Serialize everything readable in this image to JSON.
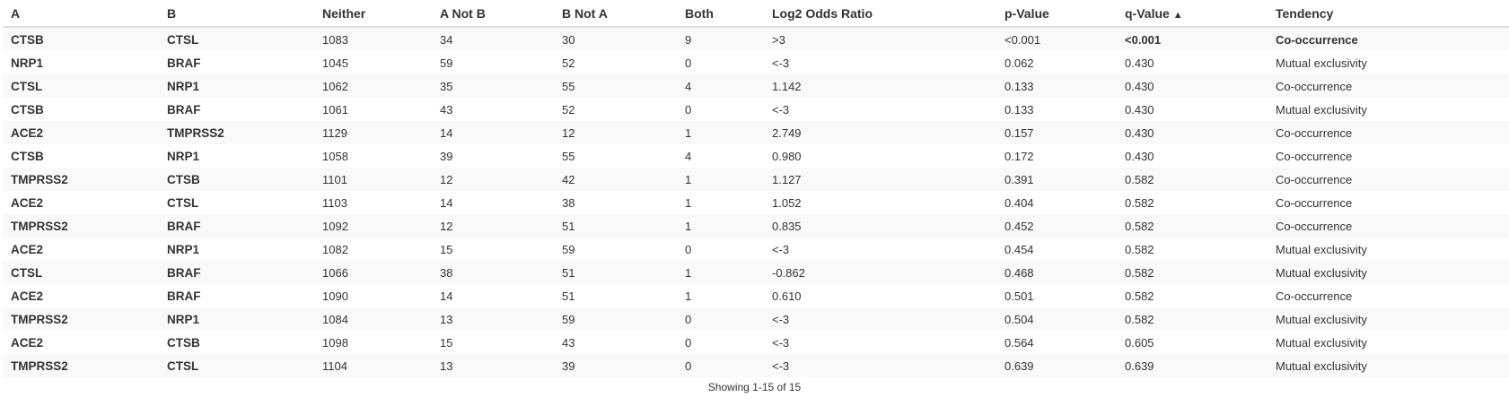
{
  "table": {
    "columns": [
      {
        "key": "a",
        "label": "A",
        "sort": ""
      },
      {
        "key": "b",
        "label": "B",
        "sort": ""
      },
      {
        "key": "neither",
        "label": "Neither",
        "sort": ""
      },
      {
        "key": "a_not_b",
        "label": "A Not B",
        "sort": ""
      },
      {
        "key": "b_not_a",
        "label": "B Not A",
        "sort": ""
      },
      {
        "key": "both",
        "label": "Both",
        "sort": ""
      },
      {
        "key": "log2",
        "label": "Log2 Odds Ratio",
        "sort": ""
      },
      {
        "key": "p",
        "label": "p-Value",
        "sort": ""
      },
      {
        "key": "q",
        "label": "q-Value",
        "sort": "▲"
      },
      {
        "key": "tendency",
        "label": "Tendency",
        "sort": ""
      }
    ],
    "rows": [
      {
        "a": "CTSB",
        "b": "CTSL",
        "neither": "1083",
        "a_not_b": "34",
        "b_not_a": "30",
        "both": "9",
        "log2": ">3",
        "p": "<0.001",
        "q": "<0.001",
        "tendency": "Co-occurrence",
        "significant": true
      },
      {
        "a": "NRP1",
        "b": "BRAF",
        "neither": "1045",
        "a_not_b": "59",
        "b_not_a": "52",
        "both": "0",
        "log2": "<-3",
        "p": "0.062",
        "q": "0.430",
        "tendency": "Mutual exclusivity",
        "significant": false
      },
      {
        "a": "CTSL",
        "b": "NRP1",
        "neither": "1062",
        "a_not_b": "35",
        "b_not_a": "55",
        "both": "4",
        "log2": "1.142",
        "p": "0.133",
        "q": "0.430",
        "tendency": "Co-occurrence",
        "significant": false
      },
      {
        "a": "CTSB",
        "b": "BRAF",
        "neither": "1061",
        "a_not_b": "43",
        "b_not_a": "52",
        "both": "0",
        "log2": "<-3",
        "p": "0.133",
        "q": "0.430",
        "tendency": "Mutual exclusivity",
        "significant": false
      },
      {
        "a": "ACE2",
        "b": "TMPRSS2",
        "neither": "1129",
        "a_not_b": "14",
        "b_not_a": "12",
        "both": "1",
        "log2": "2.749",
        "p": "0.157",
        "q": "0.430",
        "tendency": "Co-occurrence",
        "significant": false
      },
      {
        "a": "CTSB",
        "b": "NRP1",
        "neither": "1058",
        "a_not_b": "39",
        "b_not_a": "55",
        "both": "4",
        "log2": "0.980",
        "p": "0.172",
        "q": "0.430",
        "tendency": "Co-occurrence",
        "significant": false
      },
      {
        "a": "TMPRSS2",
        "b": "CTSB",
        "neither": "1101",
        "a_not_b": "12",
        "b_not_a": "42",
        "both": "1",
        "log2": "1.127",
        "p": "0.391",
        "q": "0.582",
        "tendency": "Co-occurrence",
        "significant": false
      },
      {
        "a": "ACE2",
        "b": "CTSL",
        "neither": "1103",
        "a_not_b": "14",
        "b_not_a": "38",
        "both": "1",
        "log2": "1.052",
        "p": "0.404",
        "q": "0.582",
        "tendency": "Co-occurrence",
        "significant": false
      },
      {
        "a": "TMPRSS2",
        "b": "BRAF",
        "neither": "1092",
        "a_not_b": "12",
        "b_not_a": "51",
        "both": "1",
        "log2": "0.835",
        "p": "0.452",
        "q": "0.582",
        "tendency": "Co-occurrence",
        "significant": false
      },
      {
        "a": "ACE2",
        "b": "NRP1",
        "neither": "1082",
        "a_not_b": "15",
        "b_not_a": "59",
        "both": "0",
        "log2": "<-3",
        "p": "0.454",
        "q": "0.582",
        "tendency": "Mutual exclusivity",
        "significant": false
      },
      {
        "a": "CTSL",
        "b": "BRAF",
        "neither": "1066",
        "a_not_b": "38",
        "b_not_a": "51",
        "both": "1",
        "log2": "-0.862",
        "p": "0.468",
        "q": "0.582",
        "tendency": "Mutual exclusivity",
        "significant": false
      },
      {
        "a": "ACE2",
        "b": "BRAF",
        "neither": "1090",
        "a_not_b": "14",
        "b_not_a": "51",
        "both": "1",
        "log2": "0.610",
        "p": "0.501",
        "q": "0.582",
        "tendency": "Co-occurrence",
        "significant": false
      },
      {
        "a": "TMPRSS2",
        "b": "NRP1",
        "neither": "1084",
        "a_not_b": "13",
        "b_not_a": "59",
        "both": "0",
        "log2": "<-3",
        "p": "0.504",
        "q": "0.582",
        "tendency": "Mutual exclusivity",
        "significant": false
      },
      {
        "a": "ACE2",
        "b": "CTSB",
        "neither": "1098",
        "a_not_b": "15",
        "b_not_a": "43",
        "both": "0",
        "log2": "<-3",
        "p": "0.564",
        "q": "0.605",
        "tendency": "Mutual exclusivity",
        "significant": false
      },
      {
        "a": "TMPRSS2",
        "b": "CTSL",
        "neither": "1104",
        "a_not_b": "13",
        "b_not_a": "39",
        "both": "0",
        "log2": "<-3",
        "p": "0.639",
        "q": "0.639",
        "tendency": "Mutual exclusivity",
        "significant": false
      }
    ]
  },
  "footer": {
    "showing": "Showing 1-15 of 15"
  }
}
